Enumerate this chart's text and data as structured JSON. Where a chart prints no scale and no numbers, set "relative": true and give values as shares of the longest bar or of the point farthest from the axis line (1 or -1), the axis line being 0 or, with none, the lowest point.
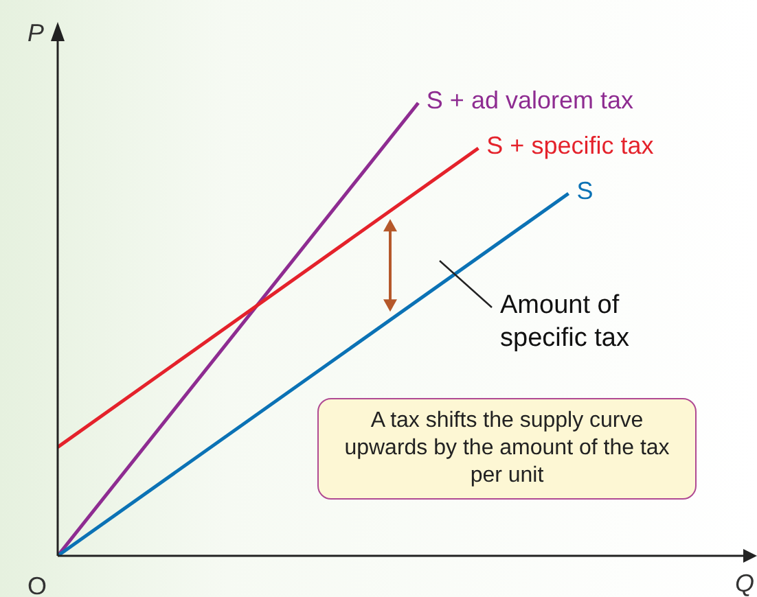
{
  "chart_data": {
    "type": "line",
    "relative": true,
    "xlabel": "Q",
    "ylabel": "P",
    "marker": "none",
    "line_style": "solid",
    "categories": [
      null,
      null,
      null,
      null,
      null,
      null,
      null,
      null,
      null,
      null,
      null,
      null,
      null,
      null,
      null,
      null,
      null,
      null,
      null,
      null,
      null,
      null,
      null,
      null
    ],
    "series": [
      {
        "name": "S + ad valorem tax",
        "color": "#8e2c91",
        "values": [
          0,
          null,
          null,
          null,
          null,
          null,
          null,
          null,
          null,
          null,
          null,
          null,
          1,
          null,
          null,
          null,
          null,
          null,
          null,
          null,
          null,
          null,
          null,
          null
        ]
      },
      {
        "name": "S + specific tax",
        "color": "#e4222b",
        "values": [
          0.24,
          null,
          null,
          null,
          null,
          null,
          null,
          null,
          null,
          null,
          null,
          null,
          null,
          null,
          0.9,
          null,
          null,
          null,
          null,
          null,
          null,
          null,
          null,
          null
        ]
      },
      {
        "name": "S",
        "color": "#0b72b5",
        "values": [
          0,
          null,
          null,
          null,
          null,
          null,
          null,
          null,
          null,
          null,
          null,
          null,
          null,
          null,
          null,
          null,
          null,
          0.8,
          null,
          null,
          null,
          null,
          null,
          null
        ]
      }
    ],
    "annotations": [
      "O",
      "Amount of specific tax",
      "A tax shifts the supply curve upwards by the amount of the tax per unit"
    ]
  }
}
